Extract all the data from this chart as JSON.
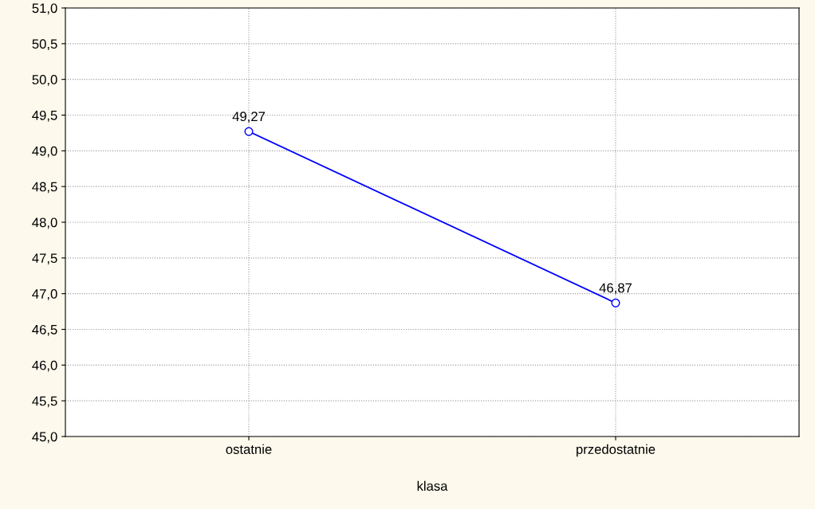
{
  "chart_data": {
    "type": "line",
    "xlabel": "klasa",
    "categories": [
      "ostatnie",
      "przedostatnie"
    ],
    "series": [
      {
        "color": "#0000ff",
        "values": [
          49.27,
          46.87
        ],
        "value_labels": [
          "49,27",
          "46,87"
        ]
      }
    ],
    "ylim": [
      45,
      51
    ],
    "yticks": [
      {
        "value": 45,
        "label": "45,0"
      },
      {
        "value": 45.5,
        "label": "45,5"
      },
      {
        "value": 46,
        "label": "46,0"
      },
      {
        "value": 46.5,
        "label": "46,5"
      },
      {
        "value": 47,
        "label": "47,0"
      },
      {
        "value": 47.5,
        "label": "47,5"
      },
      {
        "value": 48,
        "label": "48,0"
      },
      {
        "value": 48.5,
        "label": "48,5"
      },
      {
        "value": 49,
        "label": "49,0"
      },
      {
        "value": 49.5,
        "label": "49,5"
      },
      {
        "value": 50,
        "label": "50,0"
      },
      {
        "value": 50.5,
        "label": "50,5"
      },
      {
        "value": 51,
        "label": "51,0"
      }
    ],
    "grid": true,
    "marker": "circle",
    "line_style": "solid"
  }
}
